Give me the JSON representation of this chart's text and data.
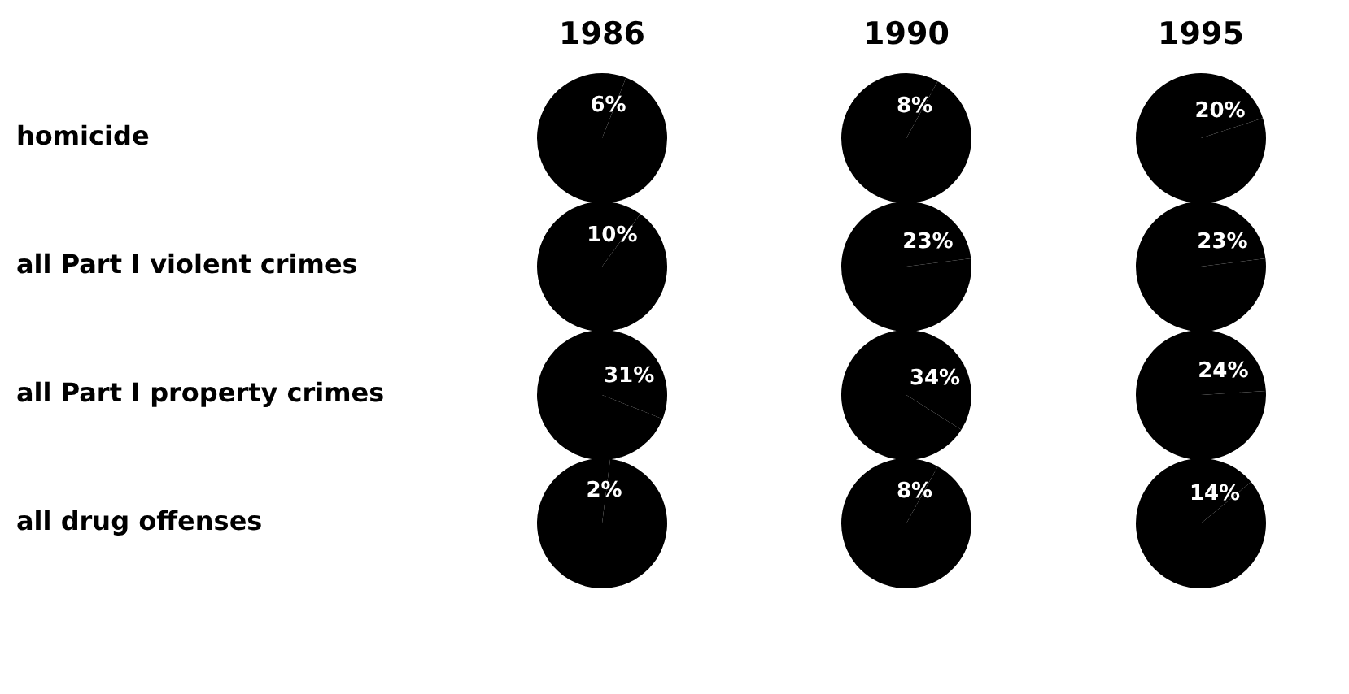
{
  "chart_data": [
    {
      "type": "pie",
      "title": "1986",
      "ylabel": "homicide",
      "categories": [
        null,
        null
      ],
      "values": [
        6,
        94
      ],
      "colors": [
        "#000000",
        "#000000"
      ],
      "value_labels": [
        "6%",
        null
      ]
    },
    {
      "type": "pie",
      "title": "1990",
      "categories": [
        null,
        null
      ],
      "values": [
        8,
        92
      ],
      "colors": [
        "#000000",
        "#000000"
      ],
      "value_labels": [
        "8%",
        null
      ]
    },
    {
      "type": "pie",
      "title": "1995",
      "categories": [
        null,
        null
      ],
      "values": [
        20,
        80
      ],
      "colors": [
        "#000000",
        "#000000"
      ],
      "value_labels": [
        "20%",
        null
      ]
    },
    {
      "type": "pie",
      "ylabel": "all Part I violent crimes",
      "categories": [
        null,
        null
      ],
      "values": [
        10,
        90
      ],
      "colors": [
        "#000000",
        "#000000"
      ],
      "value_labels": [
        "10%",
        null
      ]
    },
    {
      "type": "pie",
      "categories": [
        null,
        null
      ],
      "values": [
        23,
        77
      ],
      "colors": [
        "#000000",
        "#000000"
      ],
      "value_labels": [
        "23%",
        null
      ]
    },
    {
      "type": "pie",
      "categories": [
        null,
        null
      ],
      "values": [
        23,
        77
      ],
      "colors": [
        "#000000",
        "#000000"
      ],
      "value_labels": [
        "23%",
        null
      ]
    },
    {
      "type": "pie",
      "ylabel": "all Part I property crimes",
      "categories": [
        null,
        null
      ],
      "values": [
        31,
        69
      ],
      "colors": [
        "#000000",
        "#000000"
      ],
      "value_labels": [
        "31%",
        null
      ]
    },
    {
      "type": "pie",
      "categories": [
        null,
        null
      ],
      "values": [
        34,
        66
      ],
      "colors": [
        "#000000",
        "#000000"
      ],
      "value_labels": [
        "34%",
        null
      ]
    },
    {
      "type": "pie",
      "categories": [
        null,
        null
      ],
      "values": [
        24,
        76
      ],
      "colors": [
        "#000000",
        "#000000"
      ],
      "value_labels": [
        "24%",
        null
      ]
    },
    {
      "type": "pie",
      "ylabel": "all drug offenses",
      "categories": [
        null,
        null
      ],
      "values": [
        2,
        98
      ],
      "colors": [
        "#000000",
        "#000000"
      ],
      "value_labels": [
        "2%",
        null
      ]
    },
    {
      "type": "pie",
      "categories": [
        null,
        null
      ],
      "values": [
        8,
        92
      ],
      "colors": [
        "#000000",
        "#000000"
      ],
      "value_labels": [
        "8%",
        null
      ]
    },
    {
      "type": "pie",
      "categories": [
        null,
        null
      ],
      "values": [
        14,
        86
      ],
      "colors": [
        "#000000",
        "#000000"
      ],
      "value_labels": [
        "14%",
        null
      ]
    }
  ]
}
